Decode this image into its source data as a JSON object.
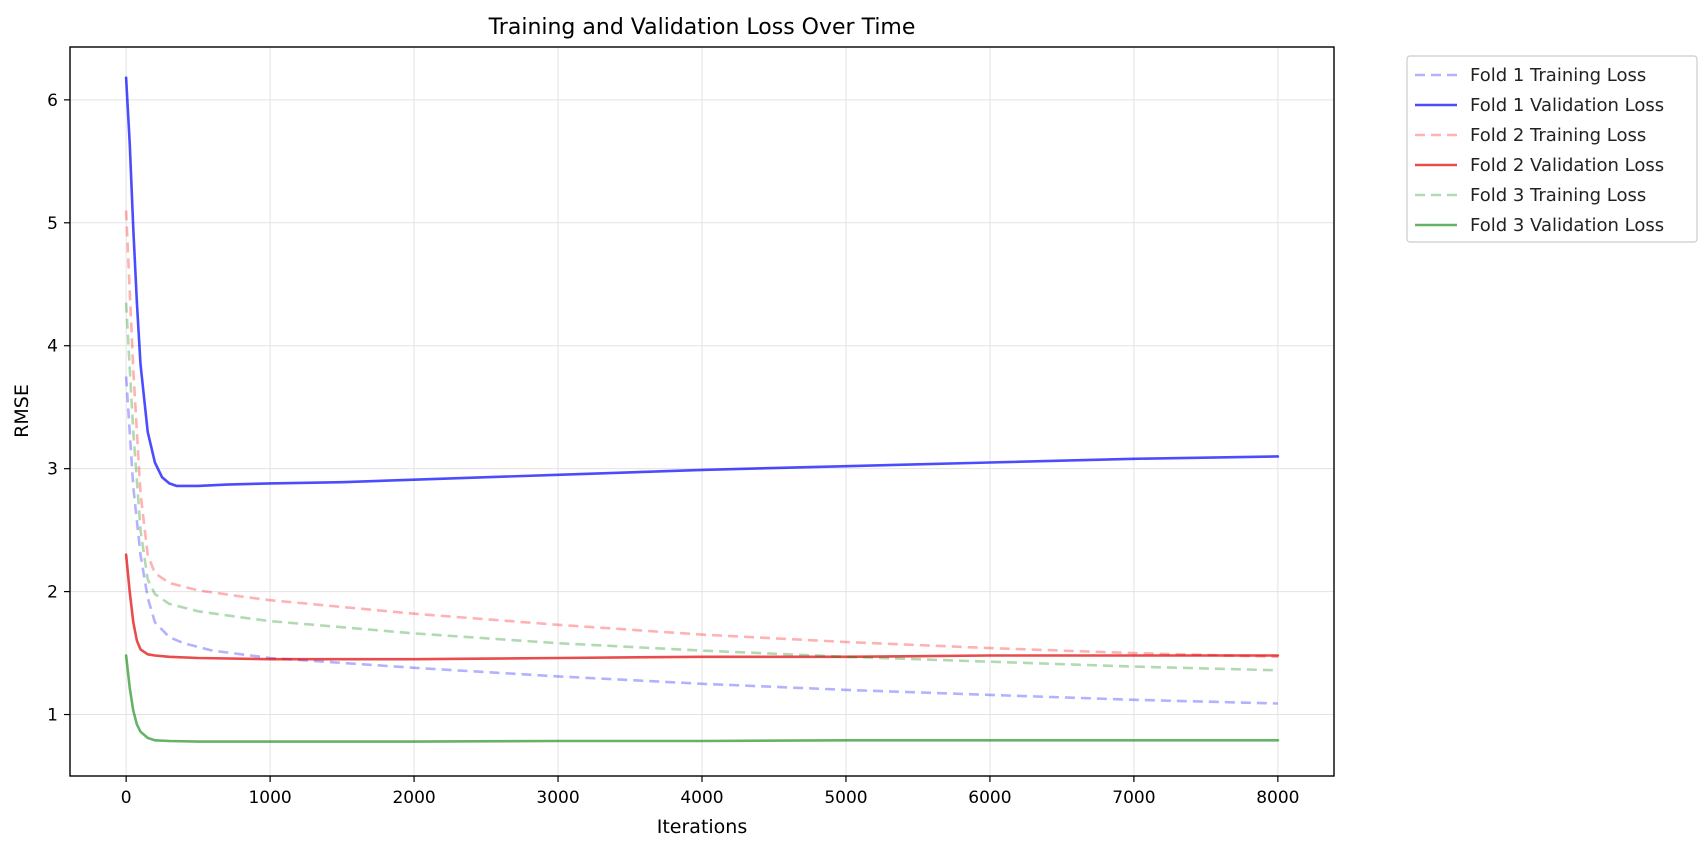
{
  "chart_data": {
    "type": "line",
    "title": "Training and Validation Loss Over Time",
    "xlabel": "Iterations",
    "ylabel": "RMSE",
    "xlim": [
      -390,
      8390
    ],
    "ylim": [
      0.5,
      6.43
    ],
    "xticks": [
      0,
      1000,
      2000,
      3000,
      4000,
      5000,
      6000,
      7000,
      8000
    ],
    "yticks": [
      1,
      2,
      3,
      4,
      5,
      6
    ],
    "grid": true,
    "legend_position": "outside-top-right",
    "series": [
      {
        "name": "Fold 1 Training Loss",
        "color": "#0000ff",
        "style": "dashed",
        "opacity": 0.3,
        "x": [
          0,
          50,
          100,
          150,
          200,
          300,
          400,
          600,
          800,
          1000,
          1500,
          2000,
          3000,
          4000,
          5000,
          6000,
          7000,
          8000
        ],
        "y": [
          3.75,
          2.85,
          2.3,
          1.95,
          1.75,
          1.63,
          1.58,
          1.52,
          1.49,
          1.46,
          1.42,
          1.38,
          1.31,
          1.25,
          1.2,
          1.16,
          1.12,
          1.09
        ]
      },
      {
        "name": "Fold 1 Validation Loss",
        "color": "#0000ff",
        "style": "solid",
        "opacity": 0.7,
        "x": [
          0,
          25,
          50,
          75,
          100,
          150,
          200,
          250,
          300,
          350,
          400,
          500,
          700,
          1000,
          1500,
          2000,
          3000,
          4000,
          5000,
          6000,
          7000,
          8000
        ],
        "y": [
          6.18,
          5.65,
          4.95,
          4.35,
          3.85,
          3.3,
          3.05,
          2.93,
          2.88,
          2.86,
          2.86,
          2.86,
          2.87,
          2.88,
          2.89,
          2.91,
          2.95,
          2.99,
          3.02,
          3.05,
          3.08,
          3.1
        ]
      },
      {
        "name": "Fold 2 Training Loss",
        "color": "#ff0000",
        "style": "dashed",
        "opacity": 0.3,
        "x": [
          0,
          50,
          100,
          150,
          200,
          300,
          500,
          800,
          1000,
          2000,
          3000,
          4000,
          5000,
          6000,
          7000,
          8000
        ],
        "y": [
          5.1,
          3.8,
          2.8,
          2.3,
          2.15,
          2.07,
          2.01,
          1.96,
          1.93,
          1.82,
          1.73,
          1.65,
          1.59,
          1.54,
          1.5,
          1.47
        ]
      },
      {
        "name": "Fold 2 Validation Loss",
        "color": "#e00000",
        "style": "solid",
        "opacity": 0.7,
        "x": [
          0,
          25,
          50,
          75,
          100,
          150,
          200,
          300,
          500,
          1000,
          2000,
          3000,
          4000,
          5000,
          6000,
          7000,
          8000
        ],
        "y": [
          2.3,
          2.0,
          1.75,
          1.6,
          1.53,
          1.49,
          1.48,
          1.47,
          1.46,
          1.45,
          1.45,
          1.46,
          1.47,
          1.47,
          1.48,
          1.48,
          1.48
        ]
      },
      {
        "name": "Fold 3 Training Loss",
        "color": "#008000",
        "style": "dashed",
        "opacity": 0.3,
        "x": [
          0,
          50,
          100,
          150,
          200,
          300,
          500,
          800,
          1000,
          2000,
          3000,
          4000,
          5000,
          6000,
          7000,
          8000
        ],
        "y": [
          4.35,
          3.3,
          2.5,
          2.1,
          1.98,
          1.9,
          1.84,
          1.79,
          1.76,
          1.66,
          1.58,
          1.52,
          1.47,
          1.43,
          1.39,
          1.36
        ]
      },
      {
        "name": "Fold 3 Validation Loss",
        "color": "#008000",
        "style": "solid",
        "opacity": 0.6,
        "x": [
          0,
          25,
          50,
          75,
          100,
          150,
          200,
          300,
          500,
          1000,
          2000,
          3000,
          4000,
          5000,
          6000,
          7000,
          8000
        ],
        "y": [
          1.48,
          1.22,
          1.03,
          0.92,
          0.86,
          0.81,
          0.79,
          0.785,
          0.78,
          0.78,
          0.78,
          0.785,
          0.785,
          0.79,
          0.79,
          0.79,
          0.79
        ]
      }
    ]
  }
}
